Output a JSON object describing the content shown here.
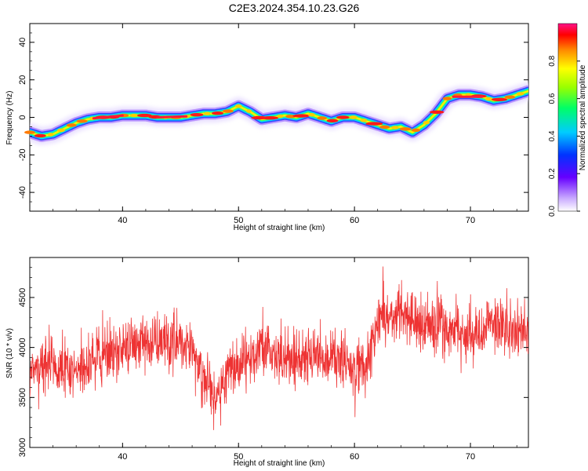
{
  "figure": {
    "title": "C2E3.2024.354.10.23.G26"
  },
  "chart_data": [
    {
      "type": "heatmap",
      "xlabel": "Height of straight line (km)",
      "ylabel": "Frequency (Hz)",
      "xlim": [
        32,
        75
      ],
      "ylim": [
        -50,
        50
      ],
      "xticks": [
        40,
        50,
        60,
        70
      ],
      "yticks": [
        -40,
        -20,
        0,
        20,
        40
      ],
      "colorbar": {
        "label": "Normalized spectral amplitude",
        "range": [
          0,
          1
        ],
        "ticks": [
          "0.0",
          "0.2",
          "0.4",
          "0.6",
          "0.8"
        ],
        "colormap": "rainbow"
      },
      "ridge": {
        "x": [
          32,
          33,
          34,
          35,
          36,
          37,
          38,
          39,
          40,
          41,
          42,
          43,
          44,
          45,
          46,
          47,
          48,
          49,
          50,
          51,
          52,
          53,
          54,
          55,
          56,
          57,
          58,
          59,
          60,
          61,
          62,
          63,
          64,
          65,
          66,
          67,
          68,
          69,
          70,
          71,
          72,
          73,
          74,
          75
        ],
        "y": [
          -8,
          -10,
          -9,
          -6,
          -3,
          -1,
          0,
          0,
          1,
          1,
          1,
          0,
          0,
          0,
          1,
          2,
          2,
          3,
          6,
          3,
          -1,
          0,
          1,
          0,
          2,
          0,
          -2,
          0,
          0,
          -2,
          -4,
          -6,
          -5,
          -8,
          -4,
          2,
          10,
          12,
          12,
          11,
          9,
          10,
          12,
          14
        ]
      }
    },
    {
      "type": "line",
      "xlabel": "Height of straight line (km)",
      "ylabel": "SNR (10 * v/v)",
      "xlim": [
        32,
        75
      ],
      "ylim": [
        3000,
        4900
      ],
      "xticks": [
        40,
        50,
        60,
        70
      ],
      "yticks": [
        3000,
        3500,
        4000,
        4500
      ],
      "color": "#ee3333",
      "trend": {
        "x": [
          32,
          34,
          36,
          38,
          40,
          42,
          44,
          46,
          47,
          48,
          50,
          52,
          54,
          56,
          58,
          60,
          61,
          62,
          64,
          66,
          68,
          70,
          72,
          74,
          75
        ],
        "y": [
          3800,
          3830,
          3750,
          3920,
          3980,
          4050,
          4080,
          3980,
          3700,
          3550,
          3850,
          3980,
          3900,
          3920,
          3900,
          3780,
          3850,
          4250,
          4350,
          4200,
          4220,
          4100,
          4250,
          4150,
          4250
        ]
      }
    }
  ]
}
